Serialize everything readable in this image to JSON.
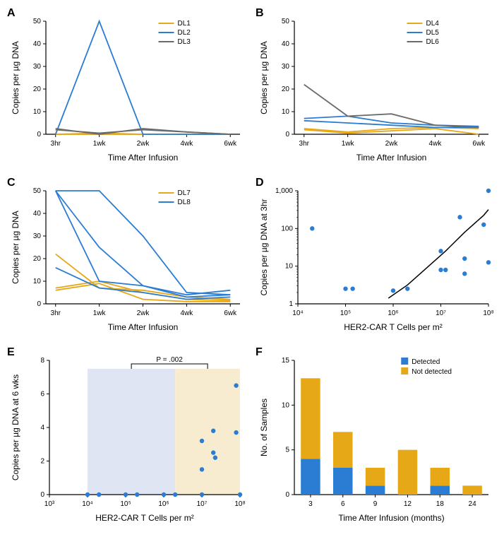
{
  "colors": {
    "yellow": "#e6a817",
    "blue": "#2b7cd3",
    "grey": "#6b6b6b",
    "black": "#000000",
    "shade_blue": "#dfe5f2",
    "shade_yellow": "#f7ecd0",
    "axis": "#000000"
  },
  "panelA": {
    "label": "A",
    "type": "line",
    "x_categories": [
      "3hr",
      "1wk",
      "2wk",
      "4wk",
      "6wk"
    ],
    "y_title": "Copies per µg DNA",
    "x_title": "Time After Infusion",
    "ylim": [
      0,
      50
    ],
    "ytick_step": 10,
    "legend": [
      {
        "label": "DL1",
        "color": "#e6a817"
      },
      {
        "label": "DL2",
        "color": "#2b7cd3"
      },
      {
        "label": "DL3",
        "color": "#6b6b6b"
      }
    ],
    "series": [
      {
        "color": "#e6a817",
        "values": [
          0,
          0,
          0,
          0,
          0
        ]
      },
      {
        "color": "#e6a817",
        "values": [
          0,
          0.5,
          0,
          0,
          0
        ]
      },
      {
        "color": "#2b7cd3",
        "values": [
          0,
          50,
          0,
          0,
          0
        ]
      },
      {
        "color": "#6b6b6b",
        "values": [
          2.5,
          0,
          2.5,
          1,
          0
        ]
      },
      {
        "color": "#6b6b6b",
        "values": [
          2,
          0.5,
          2,
          1,
          0
        ]
      }
    ]
  },
  "panelB": {
    "label": "B",
    "type": "line",
    "x_categories": [
      "3hr",
      "1wk",
      "2wk",
      "4wk",
      "6wk"
    ],
    "y_title": "Copies per µg DNA",
    "x_title": "Time After Infusion",
    "ylim": [
      0,
      50
    ],
    "ytick_step": 10,
    "legend": [
      {
        "label": "DL4",
        "color": "#e6a817"
      },
      {
        "label": "DL5",
        "color": "#2b7cd3"
      },
      {
        "label": "DL6",
        "color": "#6b6b6b"
      }
    ],
    "series": [
      {
        "color": "#e6a817",
        "values": [
          2,
          0.5,
          1.5,
          2.5,
          0
        ]
      },
      {
        "color": "#e6a817",
        "values": [
          2.5,
          1,
          2.5,
          3,
          2.5
        ]
      },
      {
        "color": "#2b7cd3",
        "values": [
          7,
          8,
          5,
          4,
          3.5
        ]
      },
      {
        "color": "#2b7cd3",
        "values": [
          6,
          5,
          4,
          3,
          3
        ]
      },
      {
        "color": "#6b6b6b",
        "values": [
          22,
          8,
          9,
          4,
          3
        ]
      }
    ]
  },
  "panelC": {
    "label": "C",
    "type": "line",
    "x_categories": [
      "3hr",
      "1wk",
      "2wk",
      "4wk",
      "6wk"
    ],
    "y_title": "Copies per µg DNA",
    "x_title": "Time After Infusion",
    "ylim": [
      0,
      50
    ],
    "ytick_step": 10,
    "legend": [
      {
        "label": "DL7",
        "color": "#e6a817"
      },
      {
        "label": "DL8",
        "color": "#2b7cd3"
      }
    ],
    "series": [
      {
        "color": "#e6a817",
        "values": [
          22,
          7,
          6,
          3,
          2
        ]
      },
      {
        "color": "#e6a817",
        "values": [
          7,
          10,
          5,
          2,
          1.5
        ]
      },
      {
        "color": "#e6a817",
        "values": [
          6,
          9,
          2,
          1,
          1
        ]
      },
      {
        "color": "#2b7cd3",
        "values": [
          50,
          10,
          8,
          3,
          4
        ]
      },
      {
        "color": "#2b7cd3",
        "values": [
          50,
          25,
          8,
          4,
          6
        ]
      },
      {
        "color": "#2b7cd3",
        "values": [
          16,
          7,
          5,
          2,
          3
        ]
      },
      {
        "color": "#2b7cd3",
        "values": [
          50,
          50,
          30,
          5,
          4
        ]
      }
    ]
  },
  "panelD": {
    "label": "D",
    "type": "scatter_loglog",
    "x_title": "HER2-CAR T Cells per m²",
    "y_title": "Copies per µg DNA at 3hr",
    "x_ticks": [
      4,
      5,
      6,
      7,
      8
    ],
    "x_tick_labels": [
      "10⁴",
      "10⁵",
      "10⁶",
      "10⁷",
      "10⁸"
    ],
    "y_ticks": [
      0,
      1,
      2,
      3
    ],
    "y_tick_labels": [
      "1",
      "10",
      "100",
      "1,000"
    ],
    "xlim": [
      4,
      8
    ],
    "ylim": [
      0,
      3
    ],
    "point_color": "#2b7cd3",
    "curve_color": "#000000",
    "points": [
      {
        "x": 4.3,
        "y": 2.0
      },
      {
        "x": 5.0,
        "y": 0.4
      },
      {
        "x": 5.15,
        "y": 0.4
      },
      {
        "x": 6.0,
        "y": 0.35
      },
      {
        "x": 6.3,
        "y": 0.4
      },
      {
        "x": 7.0,
        "y": 1.4
      },
      {
        "x": 7.0,
        "y": 0.9
      },
      {
        "x": 7.1,
        "y": 0.9
      },
      {
        "x": 7.4,
        "y": 2.3
      },
      {
        "x": 7.5,
        "y": 1.2
      },
      {
        "x": 7.5,
        "y": 0.8
      },
      {
        "x": 7.9,
        "y": 2.1
      },
      {
        "x": 8.0,
        "y": 3.0
      },
      {
        "x": 8.0,
        "y": 1.1
      }
    ],
    "curve": [
      {
        "x": 5.9,
        "y": 0.15
      },
      {
        "x": 6.3,
        "y": 0.5
      },
      {
        "x": 6.7,
        "y": 0.95
      },
      {
        "x": 7.1,
        "y": 1.4
      },
      {
        "x": 7.5,
        "y": 1.9
      },
      {
        "x": 7.9,
        "y": 2.35
      },
      {
        "x": 8.0,
        "y": 2.5
      }
    ]
  },
  "panelE": {
    "label": "E",
    "type": "scatter_logx",
    "x_title": "HER2-CAR T Cells per m²",
    "y_title": "Copies per µg DNA at 6 wks",
    "x_ticks": [
      3,
      4,
      5,
      6,
      7,
      8
    ],
    "x_tick_labels": [
      "10³",
      "10⁴",
      "10⁵",
      "10⁶",
      "10⁷",
      "10⁸"
    ],
    "ylim": [
      0,
      8
    ],
    "ytick_step": 2,
    "xlim": [
      3,
      8
    ],
    "shade_blue_x": [
      4,
      6.3
    ],
    "shade_yellow_x": [
      6.3,
      8
    ],
    "p_text": "P = .002",
    "bracket_x": [
      5.15,
      7.15
    ],
    "point_color": "#2b7cd3",
    "points": [
      {
        "x": 4.0,
        "y": 0
      },
      {
        "x": 4.3,
        "y": 0
      },
      {
        "x": 5.0,
        "y": 0
      },
      {
        "x": 5.3,
        "y": 0
      },
      {
        "x": 6.0,
        "y": 0
      },
      {
        "x": 6.3,
        "y": 0
      },
      {
        "x": 7.0,
        "y": 3.2
      },
      {
        "x": 7.0,
        "y": 1.5
      },
      {
        "x": 7.0,
        "y": 0
      },
      {
        "x": 7.3,
        "y": 3.8
      },
      {
        "x": 7.3,
        "y": 2.5
      },
      {
        "x": 7.35,
        "y": 2.2
      },
      {
        "x": 7.9,
        "y": 6.5
      },
      {
        "x": 7.9,
        "y": 3.7
      },
      {
        "x": 8.0,
        "y": 0
      }
    ]
  },
  "panelF": {
    "label": "F",
    "type": "stacked_bar",
    "x_title": "Time After Infusion (months)",
    "y_title": "No. of Samples",
    "ylim": [
      0,
      15
    ],
    "ytick_step": 5,
    "categories": [
      "3",
      "6",
      "9",
      "12",
      "18",
      "24"
    ],
    "legend": [
      {
        "label": "Detected",
        "color": "#2b7cd3"
      },
      {
        "label": "Not detected",
        "color": "#e6a817"
      }
    ],
    "bars": [
      {
        "cat": "3",
        "detected": 4,
        "not": 9
      },
      {
        "cat": "6",
        "detected": 3,
        "not": 4
      },
      {
        "cat": "9",
        "detected": 1,
        "not": 2
      },
      {
        "cat": "12",
        "detected": 0,
        "not": 5
      },
      {
        "cat": "18",
        "detected": 1,
        "not": 2
      },
      {
        "cat": "24",
        "detected": 0,
        "not": 1
      }
    ],
    "bar_width": 0.6
  }
}
